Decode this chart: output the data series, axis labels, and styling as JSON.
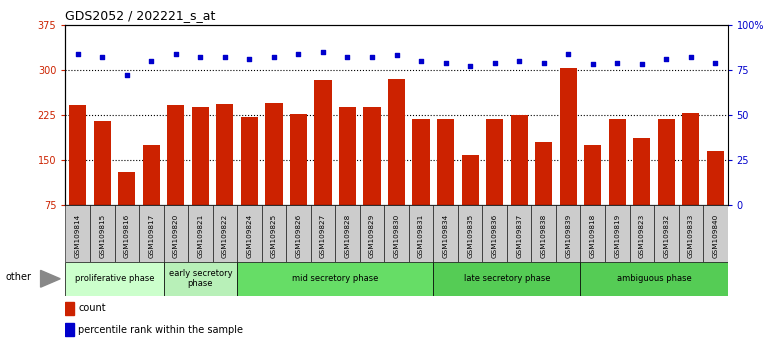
{
  "title": "GDS2052 / 202221_s_at",
  "samples": [
    "GSM109814",
    "GSM109815",
    "GSM109816",
    "GSM109817",
    "GSM109820",
    "GSM109821",
    "GSM109822",
    "GSM109824",
    "GSM109825",
    "GSM109826",
    "GSM109827",
    "GSM109828",
    "GSM109829",
    "GSM109830",
    "GSM109831",
    "GSM109834",
    "GSM109835",
    "GSM109836",
    "GSM109837",
    "GSM109838",
    "GSM109839",
    "GSM109818",
    "GSM109819",
    "GSM109823",
    "GSM109832",
    "GSM109833",
    "GSM109840"
  ],
  "counts": [
    242,
    215,
    130,
    175,
    242,
    238,
    243,
    222,
    245,
    227,
    284,
    238,
    238,
    285,
    218,
    218,
    158,
    218,
    225,
    180,
    303,
    175,
    218,
    187,
    218,
    228,
    165
  ],
  "percentiles": [
    84,
    82,
    72,
    80,
    84,
    82,
    82,
    81,
    82,
    84,
    85,
    82,
    82,
    83,
    80,
    79,
    77,
    79,
    80,
    79,
    84,
    78,
    79,
    78,
    81,
    82,
    79
  ],
  "phases": [
    {
      "label": "proliferative phase",
      "start": 0,
      "end": 4,
      "color": "#ccffcc"
    },
    {
      "label": "early secretory\nphase",
      "start": 4,
      "end": 7,
      "color": "#b8f0b8"
    },
    {
      "label": "mid secretory phase",
      "start": 7,
      "end": 15,
      "color": "#66dd66"
    },
    {
      "label": "late secretory phase",
      "start": 15,
      "end": 21,
      "color": "#55cc55"
    },
    {
      "label": "ambiguous phase",
      "start": 21,
      "end": 27,
      "color": "#55cc55"
    }
  ],
  "bar_color": "#cc2200",
  "dot_color": "#0000cc",
  "ylim_left": [
    75,
    375
  ],
  "ylim_right": [
    0,
    100
  ],
  "yticks_left": [
    75,
    150,
    225,
    300,
    375
  ],
  "ytick_labels_left": [
    "75",
    "150",
    "225",
    "300",
    "375"
  ],
  "yticks_right": [
    0,
    25,
    50,
    75,
    100
  ],
  "ytick_labels_right": [
    "0",
    "25",
    "50",
    "75",
    "100%"
  ],
  "dotted_line_values": [
    150,
    225,
    300
  ],
  "bg_color": "#ffffff",
  "tick_box_color": "#cccccc"
}
